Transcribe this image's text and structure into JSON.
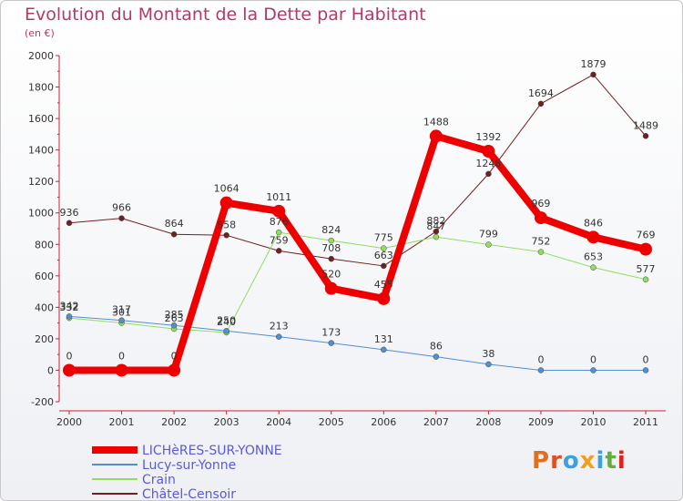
{
  "title": "Evolution du Montant de la Dette par Habitant",
  "subtitle": "(en €)",
  "logo": "Proxiti",
  "colors": {
    "title": "#b03a6a",
    "axis": "#d22030",
    "legend_text": "#5a5ad8"
  },
  "chart_data": {
    "type": "line",
    "title": "Evolution du Montant de la Dette par Habitant",
    "ylabel": "(en €)",
    "xlabel": "",
    "x": [
      "2000",
      "2001",
      "2002",
      "2003",
      "2004",
      "2005",
      "2006",
      "2007",
      "2008",
      "2009",
      "2010",
      "2011"
    ],
    "ylim": [
      -200,
      2000
    ],
    "yticks": [
      -200,
      0,
      200,
      400,
      600,
      800,
      1000,
      1200,
      1400,
      1600,
      1800,
      2000
    ],
    "grid": false,
    "legend_position": "bottom-left",
    "series": [
      {
        "name": "LICHèRES-SUR-YONNE",
        "color": "#ee0000",
        "values": [
          0,
          0,
          0,
          1064,
          1011,
          520,
          455,
          1488,
          1392,
          969,
          846,
          769
        ]
      },
      {
        "name": "Lucy-sur-Yonne",
        "color": "#5090d0",
        "values": [
          342,
          317,
          285,
          250,
          213,
          173,
          131,
          86,
          38,
          0,
          0,
          0
        ]
      },
      {
        "name": "Crain",
        "color": "#90dd60",
        "values": [
          332,
          301,
          263,
          240,
          876,
          824,
          775,
          847,
          799,
          752,
          653,
          577
        ]
      },
      {
        "name": "Châtel-Censoir",
        "color": "#702020",
        "values": [
          936,
          966,
          864,
          858,
          759,
          708,
          663,
          882,
          1248,
          1694,
          1879,
          1489
        ]
      }
    ]
  }
}
